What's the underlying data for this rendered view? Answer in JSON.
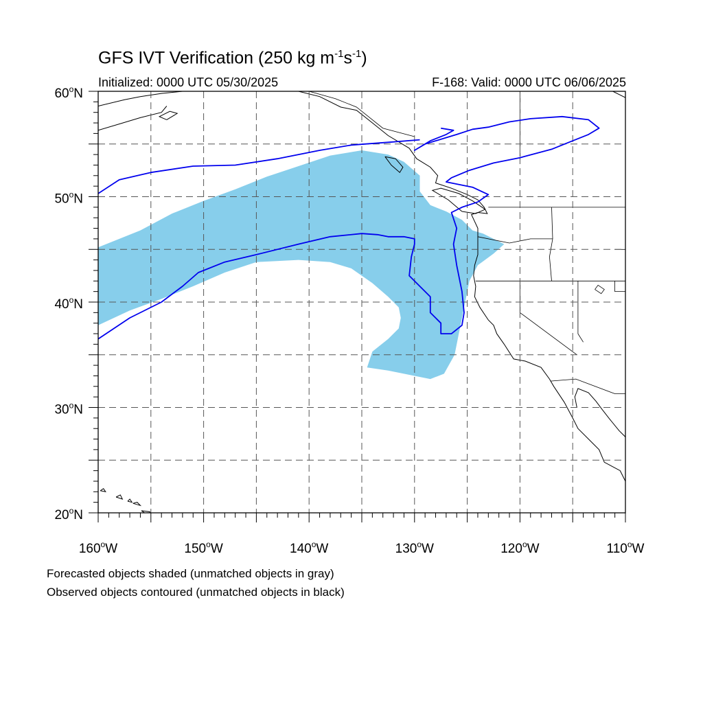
{
  "title": {
    "prefix": "GFS IVT Verification (250 kg m",
    "exp1": "-1",
    "mid": "s",
    "exp2": "-1",
    "suffix": ")"
  },
  "subtitle_left": "Initialized: 0000 UTC 05/30/2025",
  "subtitle_right": "F-168: Valid: 0000 UTC 06/06/2025",
  "captions": [
    "Forecasted objects shaded (unmatched objects in gray)",
    "Observed objects contoured (unmatched objects in black)"
  ],
  "colors": {
    "forecast_fill": "#87CEEB",
    "observed_contour": "#0000EE",
    "coastline": "#000000",
    "grid": "#555555"
  },
  "map": {
    "lon_range": [
      -160,
      -110
    ],
    "lat_range": [
      20,
      60
    ],
    "lon_ticks": [
      {
        "value": -160,
        "num": "160",
        "deg": "o",
        "hemi": "W"
      },
      {
        "value": -150,
        "num": "150",
        "deg": "o",
        "hemi": "W"
      },
      {
        "value": -140,
        "num": "140",
        "deg": "o",
        "hemi": "W"
      },
      {
        "value": -130,
        "num": "130",
        "deg": "o",
        "hemi": "W"
      },
      {
        "value": -120,
        "num": "120",
        "deg": "o",
        "hemi": "W"
      },
      {
        "value": -110,
        "num": "110",
        "deg": "o",
        "hemi": "W"
      }
    ],
    "lat_ticks": [
      {
        "value": 20,
        "num": "20",
        "deg": "o",
        "hemi": "N"
      },
      {
        "value": 30,
        "num": "30",
        "deg": "o",
        "hemi": "N"
      },
      {
        "value": 40,
        "num": "40",
        "deg": "o",
        "hemi": "N"
      },
      {
        "value": 50,
        "num": "50",
        "deg": "o",
        "hemi": "N"
      },
      {
        "value": 60,
        "num": "60",
        "deg": "o",
        "hemi": "N"
      }
    ],
    "forecast_object": [
      [
        -160,
        45.2
      ],
      [
        -156,
        46.8
      ],
      [
        -153,
        48.4
      ],
      [
        -150,
        49.6
      ],
      [
        -147,
        50.7
      ],
      [
        -144,
        51.9
      ],
      [
        -141,
        52.9
      ],
      [
        -138,
        53.9
      ],
      [
        -135,
        54.4
      ],
      [
        -132.5,
        54.0
      ],
      [
        -131,
        53.3
      ],
      [
        -129.5,
        52.0
      ],
      [
        -129.5,
        50.5
      ],
      [
        -128.5,
        49.2
      ],
      [
        -127,
        48.6
      ],
      [
        -125.5,
        47.8
      ],
      [
        -124.5,
        46.8
      ],
      [
        -123.5,
        46.5
      ],
      [
        -121.5,
        45.5
      ],
      [
        -122.5,
        44.6
      ],
      [
        -124,
        43.5
      ],
      [
        -124.8,
        42.0
      ],
      [
        -125.3,
        39.5
      ],
      [
        -125.8,
        37.0
      ],
      [
        -126.2,
        35.0
      ],
      [
        -127.2,
        33.2
      ],
      [
        -128.5,
        32.7
      ],
      [
        -130,
        33.0
      ],
      [
        -132.5,
        33.5
      ],
      [
        -134.5,
        33.8
      ],
      [
        -134,
        35.3
      ],
      [
        -132.5,
        36.5
      ],
      [
        -131.5,
        37.5
      ],
      [
        -131.3,
        38.5
      ],
      [
        -131.5,
        39.5
      ],
      [
        -132.5,
        40.5
      ],
      [
        -134,
        41.8
      ],
      [
        -136,
        43.2
      ],
      [
        -138,
        43.8
      ],
      [
        -141,
        44.0
      ],
      [
        -145,
        43.8
      ],
      [
        -148,
        42.8
      ],
      [
        -151,
        41.5
      ],
      [
        -154,
        40.3
      ],
      [
        -157,
        39.2
      ],
      [
        -160,
        37.8
      ]
    ],
    "observed_contours": [
      [
        [
          -160,
          50.3
        ],
        [
          -158,
          51.6
        ],
        [
          -155,
          52.3
        ],
        [
          -151,
          52.9
        ],
        [
          -147,
          53.0
        ],
        [
          -143,
          53.6
        ],
        [
          -139,
          54.4
        ],
        [
          -136,
          54.9
        ],
        [
          -132,
          55.2
        ],
        [
          -129.5,
          55.4
        ]
      ],
      [
        [
          -160,
          36.5
        ],
        [
          -157,
          38.5
        ],
        [
          -154,
          40.0
        ],
        [
          -152,
          41.5
        ],
        [
          -150.5,
          42.8
        ],
        [
          -148,
          43.8
        ],
        [
          -145,
          44.5
        ],
        [
          -141,
          45.5
        ],
        [
          -138,
          46.2
        ],
        [
          -135,
          46.5
        ],
        [
          -133.5,
          46.4
        ],
        [
          -132.5,
          46.2
        ],
        [
          -131,
          46.2
        ],
        [
          -130,
          46.0
        ],
        [
          -130,
          45.5
        ],
        [
          -130.3,
          44.3
        ],
        [
          -130.5,
          42.5
        ],
        [
          -129.5,
          41.5
        ],
        [
          -128.5,
          40.5
        ],
        [
          -128.5,
          39.0
        ],
        [
          -127.5,
          38.0
        ],
        [
          -127.5,
          37.0
        ],
        [
          -126.5,
          37.0
        ],
        [
          -125.5,
          37.8
        ],
        [
          -125.3,
          39.0
        ],
        [
          -125.5,
          41.0
        ],
        [
          -126,
          43.5
        ],
        [
          -126.3,
          45.5
        ],
        [
          -126,
          47.0
        ],
        [
          -126.5,
          48.5
        ],
        [
          -125.5,
          49.0
        ],
        [
          -124,
          49.5
        ],
        [
          -123,
          50.2
        ],
        [
          -124.5,
          50.9
        ],
        [
          -127,
          51.4
        ],
        [
          -126.5,
          51.8
        ],
        [
          -124.8,
          52.5
        ],
        [
          -122.5,
          53.2
        ],
        [
          -120,
          53.7
        ],
        [
          -117,
          54.5
        ],
        [
          -115,
          55.3
        ],
        [
          -113.5,
          55.9
        ],
        [
          -112.5,
          56.5
        ],
        [
          -113.5,
          57.3
        ],
        [
          -116,
          57.6
        ],
        [
          -119,
          57.4
        ],
        [
          -121,
          57.1
        ],
        [
          -123,
          56.6
        ],
        [
          -124.5,
          56.4
        ],
        [
          -126,
          55.9
        ],
        [
          -127,
          55.6
        ],
        [
          -129,
          55.0
        ],
        [
          -130,
          54.4
        ],
        [
          -128.5,
          55.3
        ],
        [
          -127,
          55.9
        ],
        [
          -126.3,
          56.3
        ],
        [
          -127.5,
          56.5
        ]
      ]
    ],
    "coastlines": [
      [
        [
          -110,
          23.0
        ],
        [
          -110.5,
          24.0
        ],
        [
          -112,
          24.8
        ],
        [
          -112.5,
          26.0
        ],
        [
          -113.5,
          27.0
        ],
        [
          -114.5,
          28.0
        ],
        [
          -115,
          29.0
        ],
        [
          -115.8,
          30.5
        ],
        [
          -116.8,
          32.0
        ],
        [
          -117.2,
          32.7
        ],
        [
          -118,
          33.8
        ],
        [
          -119.5,
          34.4
        ],
        [
          -120.6,
          34.6
        ],
        [
          -121.5,
          36.0
        ],
        [
          -122.2,
          37.0
        ],
        [
          -122.5,
          37.8
        ],
        [
          -123,
          38.3
        ],
        [
          -123.8,
          39.5
        ],
        [
          -124.3,
          40.5
        ],
        [
          -124.2,
          41.5
        ],
        [
          -124.4,
          42.5
        ],
        [
          -124.3,
          43.5
        ],
        [
          -124,
          44.5
        ],
        [
          -124,
          46.0
        ],
        [
          -124,
          47.0
        ],
        [
          -124.6,
          48.3
        ],
        [
          -124,
          48.5
        ],
        [
          -123.1,
          48.4
        ],
        [
          -123.4,
          49.0
        ],
        [
          -124,
          49.7
        ],
        [
          -125,
          50.2
        ],
        [
          -126.5,
          50.8
        ],
        [
          -128,
          51.3
        ],
        [
          -127.8,
          52.0
        ],
        [
          -128.5,
          52.8
        ],
        [
          -129.8,
          53.6
        ],
        [
          -130.5,
          54.6
        ],
        [
          -131.5,
          55.2
        ],
        [
          -132.5,
          55.8
        ],
        [
          -134,
          57.0
        ],
        [
          -135.5,
          58.2
        ],
        [
          -137,
          58.5
        ],
        [
          -139,
          59.5
        ],
        [
          -141,
          60.0
        ]
      ],
      [
        [
          -110,
          27.2
        ],
        [
          -110.6,
          27.8
        ],
        [
          -111.5,
          28.9
        ],
        [
          -112.2,
          29.8
        ],
        [
          -112.8,
          30.6
        ],
        [
          -113.5,
          31.4
        ],
        [
          -114.5,
          31.8
        ],
        [
          -114.8,
          31.0
        ],
        [
          -114.6,
          30.0
        ]
      ],
      [
        [
          -132.8,
          53.8
        ],
        [
          -132.2,
          53.0
        ],
        [
          -131.4,
          52.3
        ],
        [
          -131.1,
          52.8
        ],
        [
          -131.8,
          53.6
        ],
        [
          -132.8,
          53.8
        ]
      ],
      [
        [
          -125.5,
          48.6
        ],
        [
          -124.2,
          48.4
        ],
        [
          -123.3,
          48.8
        ],
        [
          -124.5,
          49.6
        ],
        [
          -125.8,
          50.3
        ],
        [
          -127.5,
          50.8
        ],
        [
          -128.3,
          50.6
        ],
        [
          -126.8,
          49.7
        ],
        [
          -125.5,
          48.6
        ]
      ],
      [
        [
          -160,
          58.6
        ],
        [
          -157.5,
          59.2
        ],
        [
          -156,
          59.5
        ],
        [
          -154,
          59.8
        ],
        [
          -152,
          60.0
        ]
      ],
      [
        [
          -160,
          56.3
        ],
        [
          -158,
          56.9
        ],
        [
          -156,
          57.5
        ],
        [
          -154,
          58.0
        ],
        [
          -153.5,
          58.6
        ]
      ],
      [
        [
          -153.5,
          57.3
        ],
        [
          -152.5,
          57.9
        ],
        [
          -153.2,
          58.1
        ],
        [
          -154.2,
          57.6
        ],
        [
          -153.5,
          57.3
        ]
      ],
      [
        [
          -110,
          59.4
        ],
        [
          -111.2,
          60.0
        ]
      ]
    ],
    "borders": [
      [
        [
          -123,
          49
        ],
        [
          -110,
          49
        ]
      ],
      [
        [
          -117,
          49
        ],
        [
          -116.9,
          46
        ],
        [
          -117.2,
          44.3
        ],
        [
          -117,
          42
        ]
      ],
      [
        [
          -124.2,
          42
        ],
        [
          -110,
          42
        ]
      ],
      [
        [
          -120,
          42
        ],
        [
          -120,
          39
        ],
        [
          -114.6,
          35.0
        ]
      ],
      [
        [
          -124,
          46.2
        ],
        [
          -121,
          45.6
        ],
        [
          -119,
          46.0
        ],
        [
          -116.9,
          46
        ]
      ],
      [
        [
          -114.5,
          42
        ],
        [
          -114.5,
          37
        ],
        [
          -114,
          36.2
        ]
      ],
      [
        [
          -117.1,
          32.5
        ],
        [
          -114.7,
          32.7
        ],
        [
          -111,
          31.3
        ],
        [
          -110,
          31.3
        ]
      ],
      [
        [
          -111,
          45
        ],
        [
          -110,
          45
        ]
      ],
      [
        [
          -111,
          42
        ],
        [
          -111,
          41
        ],
        [
          -110,
          41
        ]
      ],
      [
        [
          -130,
          55.7
        ],
        [
          -133,
          56.5
        ],
        [
          -135.5,
          58.5
        ],
        [
          -137.5,
          59.3
        ],
        [
          -140,
          60
        ]
      ],
      [
        [
          -120,
          60
        ],
        [
          -120,
          53.8
        ]
      ]
    ],
    "lakes": [
      [
        [
          -112.9,
          41.2
        ],
        [
          -112.3,
          40.8
        ],
        [
          -112.0,
          41.2
        ],
        [
          -112.6,
          41.6
        ],
        [
          -112.9,
          41.2
        ]
      ]
    ],
    "hawaii": [
      [
        [
          -159.8,
          22.1
        ],
        [
          -159.3,
          22.0
        ],
        [
          -159.5,
          22.3
        ],
        [
          -159.8,
          22.1
        ]
      ],
      [
        [
          -158.3,
          21.5
        ],
        [
          -157.7,
          21.3
        ],
        [
          -157.9,
          21.7
        ],
        [
          -158.3,
          21.5
        ]
      ],
      [
        [
          -157.2,
          21.1
        ],
        [
          -156.8,
          21.0
        ],
        [
          -157.0,
          21.3
        ],
        [
          -157.2,
          21.1
        ]
      ],
      [
        [
          -156.7,
          20.9
        ],
        [
          -156.0,
          20.7
        ],
        [
          -156.3,
          21.0
        ],
        [
          -156.7,
          20.9
        ]
      ],
      [
        [
          -155.9,
          20.2
        ],
        [
          -155.0,
          19.6
        ],
        [
          -155.1,
          20.1
        ],
        [
          -155.9,
          20.2
        ]
      ]
    ]
  }
}
